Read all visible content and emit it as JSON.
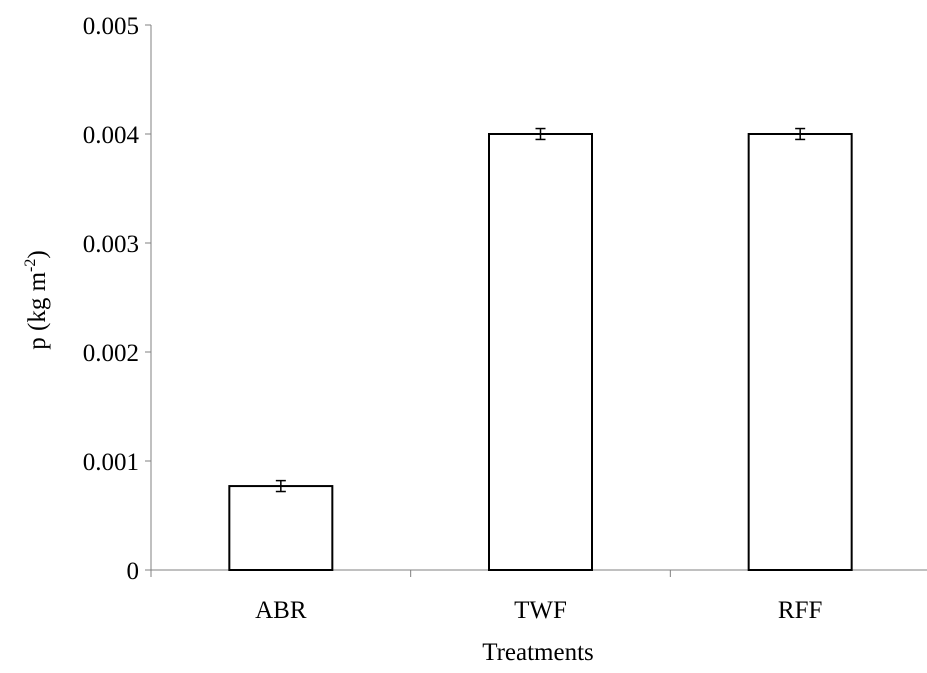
{
  "chart_data": {
    "type": "bar",
    "categories": [
      "ABR",
      "TWF",
      "RFF"
    ],
    "values": [
      0.00077,
      0.004,
      0.004
    ],
    "errors": [
      5e-05,
      5e-05,
      5e-05
    ],
    "ylim": [
      0,
      0.005
    ],
    "yticks": [
      0,
      0.001,
      0.002,
      0.003,
      0.004,
      0.005
    ],
    "ytick_labels": [
      "0",
      "0.001",
      "0.002",
      "0.003",
      "0.004",
      "0.005"
    ],
    "xlabel": "Treatments",
    "ylabel": {
      "prefix": "p (kg m",
      "superscript": "-2",
      "suffix": ")"
    },
    "grid": false,
    "legend": "none",
    "colors": {
      "bar_fill": "#ffffff",
      "bar_stroke": "#000000",
      "axis": "#808080"
    }
  }
}
